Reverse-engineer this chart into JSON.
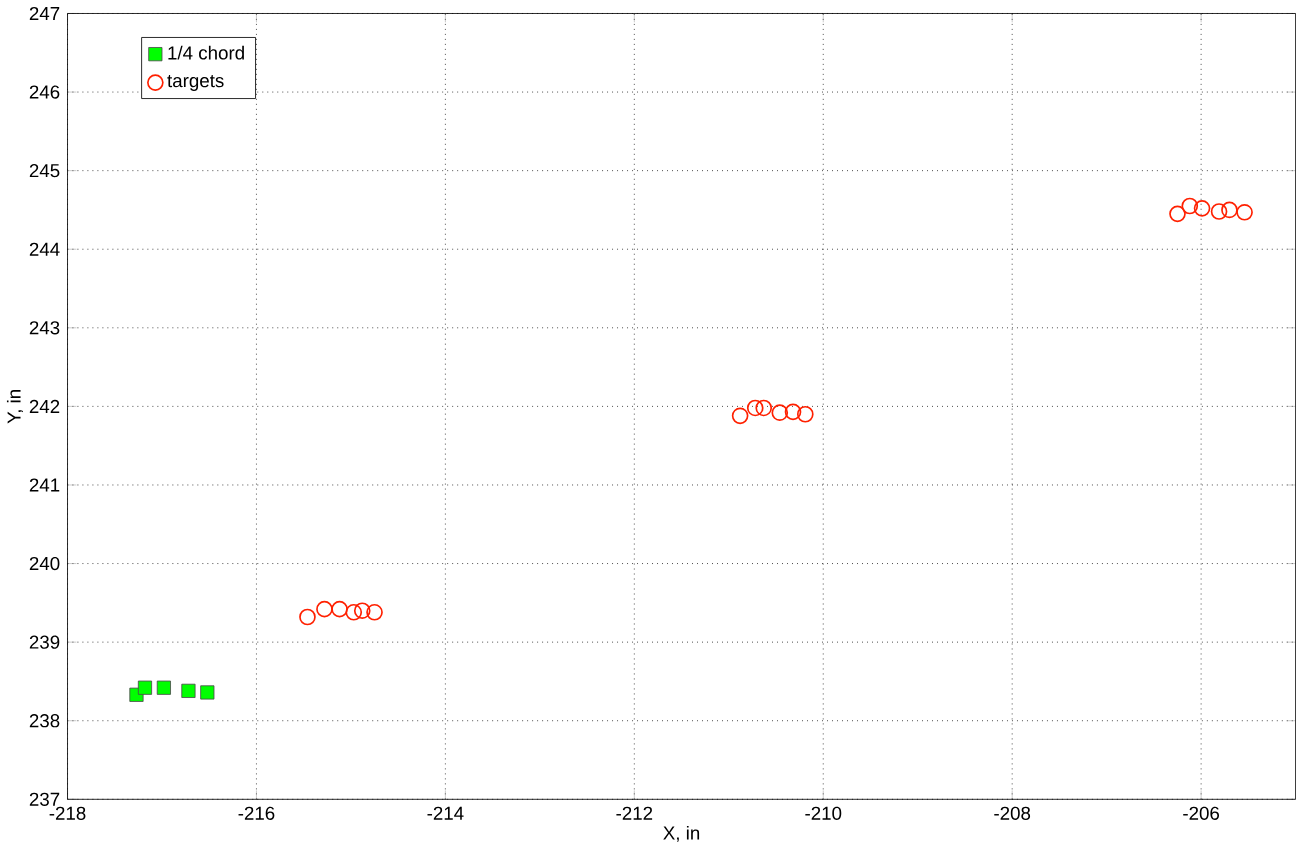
{
  "chart_data": {
    "type": "scatter",
    "xlabel": "X, in",
    "ylabel": "Y, in",
    "xlim": [
      -218,
      -205
    ],
    "ylim": [
      237,
      247
    ],
    "xticks": [
      -218,
      -216,
      -214,
      -212,
      -210,
      -208,
      -206
    ],
    "yticks": [
      237,
      238,
      239,
      240,
      241,
      242,
      243,
      244,
      245,
      246,
      247
    ],
    "grid": true,
    "legend": "top left",
    "series": [
      {
        "name": "1/4 chord",
        "color": "#00ff00",
        "marker": "square",
        "x": [
          -217.27,
          -217.18,
          -216.98,
          -216.72,
          -216.52
        ],
        "values": [
          238.33,
          238.42,
          238.42,
          238.38,
          238.36
        ]
      },
      {
        "name": "targets",
        "color": "#ff2000",
        "marker": "circle",
        "x": [
          -215.46,
          -215.28,
          -215.12,
          -214.97,
          -214.88,
          -214.75,
          -210.88,
          -210.72,
          -210.63,
          -210.46,
          -210.32,
          -210.19,
          -206.25,
          -206.12,
          -205.99,
          -205.81,
          -205.7,
          -205.54
        ],
        "values": [
          239.32,
          239.42,
          239.42,
          239.38,
          239.4,
          239.38,
          241.88,
          241.98,
          241.98,
          241.92,
          241.93,
          241.9,
          244.45,
          244.55,
          244.52,
          244.48,
          244.5,
          244.47
        ]
      }
    ]
  }
}
